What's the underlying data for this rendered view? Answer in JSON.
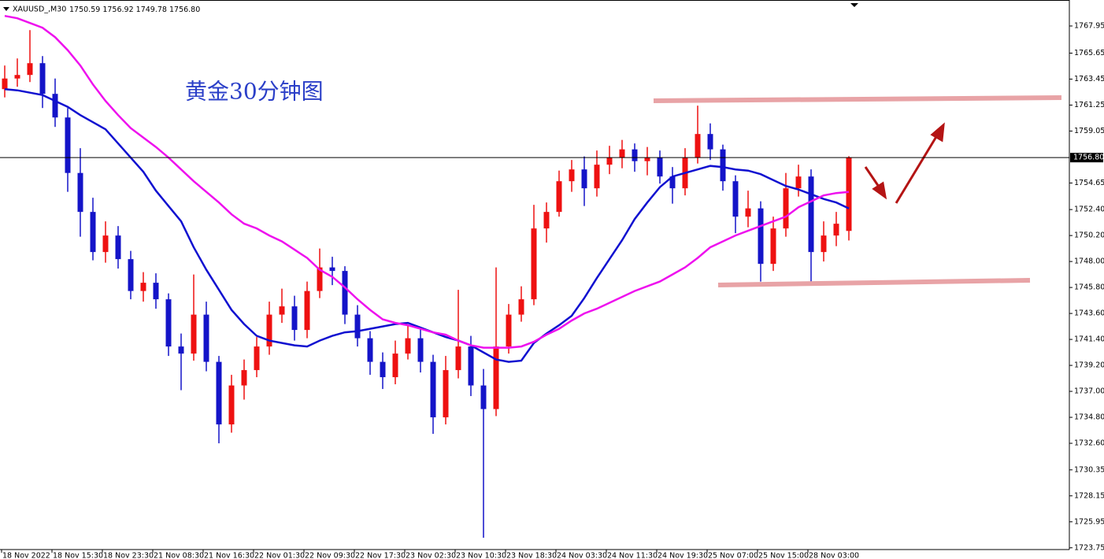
{
  "chart_data": {
    "type": "candlestick",
    "symbol": "XAUUSD_,M30",
    "header_values": [
      "1750.59",
      "1756.92",
      "1749.78",
      "1756.80"
    ],
    "title": "黄金30分钟图",
    "categories": [
      "18 Nov 2022",
      null,
      null,
      null,
      "18 Nov 15:30",
      null,
      null,
      null,
      "18 Nov 23:30",
      null,
      null,
      null,
      "21 Nov 08:30",
      null,
      null,
      null,
      "21 Nov 16:30",
      null,
      null,
      null,
      "22 Nov 01:30",
      null,
      null,
      null,
      "22 Nov 09:30",
      null,
      null,
      null,
      "22 Nov 17:30",
      null,
      null,
      null,
      "23 Nov 02:30",
      null,
      null,
      null,
      "23 Nov 10:30",
      null,
      null,
      null,
      "23 Nov 18:30",
      null,
      null,
      null,
      "24 Nov 03:30",
      null,
      null,
      null,
      "24 Nov 11:30",
      null,
      null,
      null,
      "24 Nov 19:30",
      null,
      null,
      null,
      "25 Nov 07:00",
      null,
      null,
      null,
      "25 Nov 15:00",
      null,
      null,
      null,
      "28 Nov 03:00",
      null,
      null,
      null
    ],
    "open": [
      1762.6,
      1763.5,
      1763.8,
      1764.8,
      1762.2,
      1760.2,
      1755.5,
      1752.2,
      1748.8,
      1750.2,
      1748.2,
      1745.5,
      1746.2,
      1744.8,
      1740.8,
      1740.2,
      1743.5,
      1739.5,
      1734.2,
      1737.5,
      1738.8,
      1740.8,
      1743.5,
      1744.2,
      1742.2,
      1745.5,
      1747.5,
      1747.2,
      1743.5,
      1741.5,
      1739.5,
      1738.2,
      1740.2,
      1741.5,
      1739.5,
      1734.8,
      1738.8,
      1740.8,
      1737.5,
      1735.5,
      1740.8,
      1743.5,
      1744.8,
      1750.8,
      1752.2,
      1754.8,
      1755.8,
      1754.2,
      1756.2,
      1756.8,
      1757.5,
      1756.5,
      1756.8,
      1755.2,
      1754.2,
      1756.8,
      1758.8,
      1757.5,
      1754.8,
      1751.8,
      1752.5,
      1747.8,
      1750.8,
      1754.2,
      1755.2,
      1748.8,
      1750.2,
      1750.59
    ],
    "high": [
      1764.6,
      1765.2,
      1767.6,
      1765.4,
      1763.5,
      1761.0,
      1757.6,
      1753.4,
      1751.4,
      1751.0,
      1748.9,
      1747.1,
      1747.0,
      1745.3,
      1741.9,
      1746.9,
      1744.6,
      1740.0,
      1738.4,
      1739.7,
      1741.6,
      1744.6,
      1745.7,
      1745.1,
      1746.3,
      1749.1,
      1748.4,
      1747.6,
      1744.3,
      1742.1,
      1740.3,
      1741.3,
      1742.6,
      1742.3,
      1740.1,
      1740.0,
      1745.6,
      1741.7,
      1738.9,
      1747.5,
      1744.4,
      1745.9,
      1752.8,
      1753.0,
      1755.7,
      1756.6,
      1756.9,
      1757.4,
      1757.8,
      1758.3,
      1758.0,
      1757.7,
      1757.4,
      1756.0,
      1757.6,
      1761.2,
      1759.7,
      1757.9,
      1755.3,
      1754.0,
      1753.1,
      1751.8,
      1755.5,
      1756.2,
      1755.8,
      1751.4,
      1752.2,
      1756.92
    ],
    "low": [
      1761.9,
      1762.8,
      1763.2,
      1761.0,
      1759.4,
      1753.9,
      1750.1,
      1748.1,
      1747.9,
      1747.4,
      1744.8,
      1744.6,
      1744.0,
      1740.0,
      1737.1,
      1739.6,
      1738.7,
      1732.6,
      1733.5,
      1736.3,
      1738.2,
      1740.1,
      1742.8,
      1741.3,
      1741.5,
      1744.9,
      1746.0,
      1742.7,
      1740.8,
      1738.4,
      1737.2,
      1737.6,
      1739.7,
      1738.6,
      1733.4,
      1734.2,
      1738.1,
      1736.6,
      1724.6,
      1734.9,
      1740.2,
      1742.9,
      1744.3,
      1749.6,
      1751.8,
      1753.9,
      1752.7,
      1753.5,
      1755.4,
      1755.9,
      1755.6,
      1755.3,
      1754.6,
      1752.9,
      1753.6,
      1756.3,
      1756.6,
      1754.0,
      1750.4,
      1750.9,
      1746.3,
      1747.2,
      1750.1,
      1753.5,
      1746.2,
      1748.0,
      1749.3,
      1749.78
    ],
    "close": [
      1763.5,
      1763.8,
      1764.8,
      1762.2,
      1760.2,
      1755.5,
      1752.2,
      1748.8,
      1750.2,
      1748.2,
      1745.5,
      1746.2,
      1744.8,
      1740.8,
      1740.2,
      1743.5,
      1739.5,
      1734.2,
      1737.5,
      1738.8,
      1740.8,
      1743.5,
      1744.2,
      1742.2,
      1745.5,
      1747.5,
      1747.2,
      1743.5,
      1741.5,
      1739.5,
      1738.2,
      1740.2,
      1741.5,
      1739.5,
      1734.8,
      1738.8,
      1740.8,
      1737.5,
      1735.5,
      1740.8,
      1743.5,
      1744.8,
      1750.8,
      1752.2,
      1754.8,
      1755.8,
      1754.2,
      1756.2,
      1756.8,
      1757.5,
      1756.5,
      1756.8,
      1755.2,
      1754.2,
      1756.8,
      1758.8,
      1757.5,
      1754.8,
      1751.8,
      1752.5,
      1747.8,
      1750.8,
      1754.2,
      1755.2,
      1748.8,
      1750.2,
      1751.2,
      1756.8
    ],
    "up_color": "#ee1111",
    "down_color": "#1414c8",
    "moving_averages": [
      {
        "color": "#1010d0",
        "values": [
          1762.6,
          1762.5,
          1762.3,
          1762.1,
          1761.6,
          1761.1,
          1760.4,
          1759.8,
          1759.2,
          1758.0,
          1756.8,
          1755.6,
          1754.0,
          1752.7,
          1751.4,
          1749.2,
          1747.3,
          1745.6,
          1743.9,
          1742.7,
          1741.7,
          1741.3,
          1741.1,
          1740.9,
          1740.8,
          1741.3,
          1741.7,
          1742.0,
          1742.1,
          1742.3,
          1742.5,
          1742.7,
          1742.8,
          1742.4,
          1742.0,
          1741.6,
          1741.3,
          1740.9,
          1740.3,
          1739.7,
          1739.5,
          1739.6,
          1741.1,
          1741.9,
          1742.6,
          1743.4,
          1744.9,
          1746.6,
          1748.2,
          1749.8,
          1751.6,
          1753.0,
          1754.3,
          1755.2,
          1755.5,
          1755.8,
          1756.1,
          1756.0,
          1755.8,
          1755.7,
          1755.4,
          1754.9,
          1754.4,
          1754.1,
          1753.7,
          1753.3,
          1753.0,
          1752.5
        ]
      },
      {
        "color": "#ee10ee",
        "values": [
          1768.8,
          1768.6,
          1768.2,
          1767.8,
          1767.0,
          1765.9,
          1764.6,
          1763.0,
          1761.6,
          1760.4,
          1759.3,
          1758.5,
          1757.7,
          1756.8,
          1755.8,
          1754.8,
          1753.9,
          1753.0,
          1752.0,
          1751.2,
          1750.8,
          1750.2,
          1749.7,
          1749.0,
          1748.3,
          1747.3,
          1746.7,
          1745.8,
          1744.8,
          1743.9,
          1743.1,
          1742.8,
          1742.6,
          1742.3,
          1742.0,
          1741.8,
          1741.3,
          1740.9,
          1740.7,
          1740.7,
          1740.7,
          1740.8,
          1741.2,
          1741.8,
          1742.3,
          1743.0,
          1743.6,
          1744.0,
          1744.5,
          1745.0,
          1745.5,
          1745.9,
          1746.3,
          1746.9,
          1747.5,
          1748.3,
          1749.2,
          1749.7,
          1750.2,
          1750.6,
          1751.0,
          1751.4,
          1751.8,
          1752.6,
          1753.1,
          1753.6,
          1753.8,
          1753.9
        ]
      }
    ],
    "ylim": [
      1723.6,
      1770.15
    ],
    "yticks": [
      1767.95,
      1765.65,
      1763.45,
      1761.25,
      1759.05,
      1754.65,
      {
        "value": 1752.4,
        "label": "1752.40"
      },
      {
        "value": 1750.2,
        "label": "1750.20"
      },
      {
        "value": 1748,
        "label": "1748.00"
      },
      {
        "value": 1745.8,
        "label": "1745.80"
      },
      {
        "value": 1743.6,
        "label": "1743.60"
      },
      {
        "value": 1741.4,
        "label": "1741.40"
      },
      {
        "value": 1739.2,
        "label": "1739.20"
      },
      {
        "value": 1737,
        "label": "1737.00"
      },
      {
        "value": 1734.8,
        "label": "1734.80"
      },
      {
        "value": 1732.6,
        "label": "1732.60"
      },
      1730.35,
      1728.15,
      1725.95,
      1723.75
    ],
    "current_price": {
      "value": 1756.8,
      "label": "1756.80"
    }
  }
}
